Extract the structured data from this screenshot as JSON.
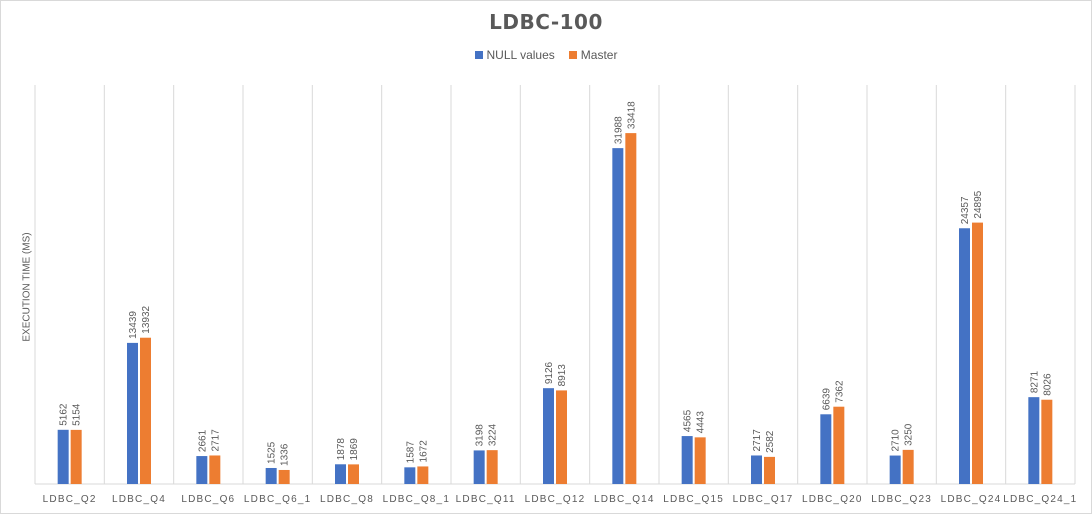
{
  "chart_data": {
    "type": "bar",
    "title": "LDBC-100",
    "ylabel": "EXECUTION TIME (MS)",
    "xlabel": "",
    "legend_position": "top",
    "grid": "vertical category separators",
    "ylim": [
      0,
      38000
    ],
    "categories": [
      "LDBC_Q2",
      "LDBC_Q4",
      "LDBC_Q6",
      "LDBC_Q6_1",
      "LDBC_Q8",
      "LDBC_Q8_1",
      "LDBC_Q11",
      "LDBC_Q12",
      "LDBC_Q14",
      "LDBC_Q15",
      "LDBC_Q17",
      "LDBC_Q20",
      "LDBC_Q23",
      "LDBC_Q24",
      "LDBC_Q24_1"
    ],
    "series": [
      {
        "name": "NULL values",
        "color": "#4472c4",
        "values": [
          5162,
          13439,
          2661,
          1525,
          1878,
          1587,
          3198,
          9126,
          31988,
          4565,
          2717,
          6639,
          2710,
          24357,
          8271
        ]
      },
      {
        "name": "Master",
        "color": "#ed7d31",
        "values": [
          5154,
          13932,
          2717,
          1336,
          1869,
          1672,
          3224,
          8913,
          33418,
          4443,
          2582,
          7362,
          3250,
          24895,
          8026
        ]
      }
    ]
  }
}
